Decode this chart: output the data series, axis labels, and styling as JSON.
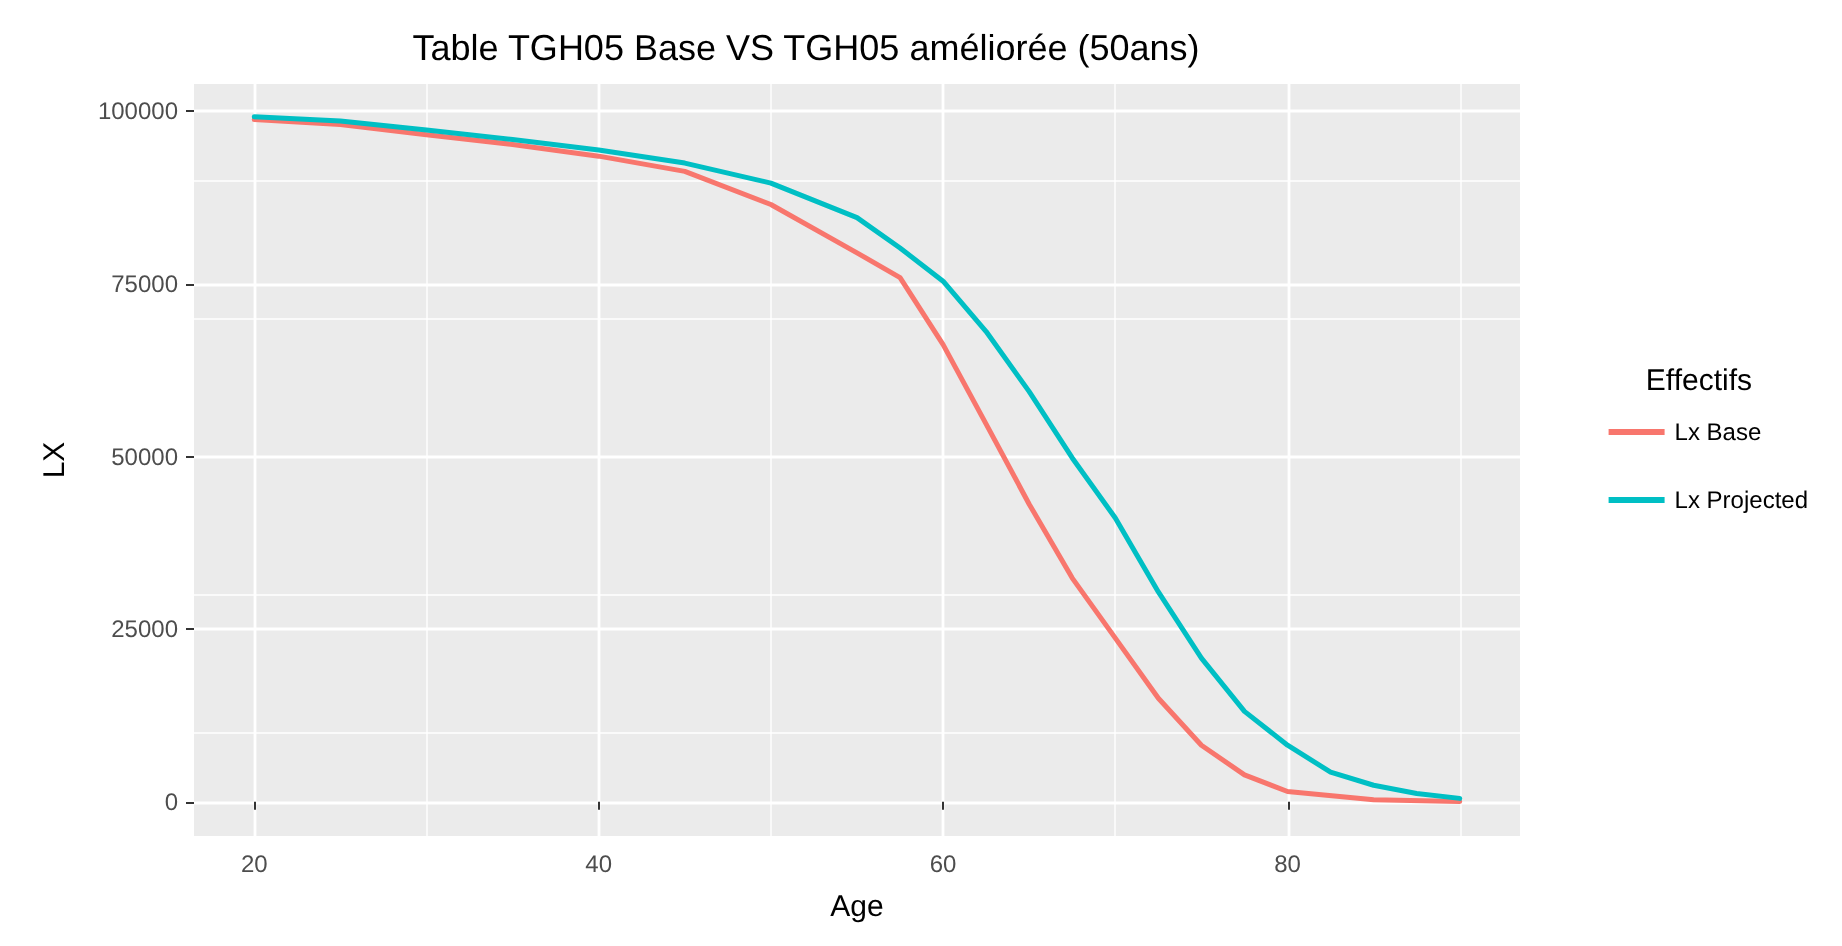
{
  "chart_data": {
    "type": "line",
    "title": "Table TGH05 Base VS TGH05 améliorée (50ans)",
    "xlabel": "Age",
    "ylabel": "LX",
    "legend_title": "Effectifs",
    "legend": "right",
    "grid": true,
    "marker": "none",
    "line_style": "solid",
    "xlim": [
      16.5,
      93.5
    ],
    "xticks": [
      20,
      40,
      60,
      80
    ],
    "ylim": [
      -4950,
      103950
    ],
    "yticks": [
      0,
      25000,
      50000,
      75000,
      100000
    ],
    "series": [
      {
        "name": "Lx Base",
        "color": "#f8766d",
        "x": [
          20,
          25,
          30,
          35,
          40,
          45,
          50,
          55,
          57.5,
          60,
          62.5,
          65,
          67.5,
          70,
          72.5,
          75,
          77.5,
          80,
          85,
          90
        ],
        "values": [
          98800,
          98100,
          96600,
          95200,
          93500,
          91300,
          86500,
          79500,
          75900,
          66200,
          54700,
          43100,
          32400,
          23700,
          15000,
          8200,
          3900,
          1500,
          300,
          50
        ]
      },
      {
        "name": "Lx Projected",
        "color": "#00bfc4",
        "x": [
          20,
          25,
          30,
          35,
          40,
          45,
          50,
          55,
          57.5,
          60,
          62.5,
          65,
          67.5,
          70,
          72.5,
          75,
          77.5,
          80,
          82.5,
          85,
          87.5,
          90
        ],
        "values": [
          99200,
          98600,
          97300,
          95900,
          94400,
          92500,
          89600,
          84600,
          80200,
          75400,
          68100,
          59400,
          49800,
          41100,
          30400,
          20800,
          13100,
          8200,
          4300,
          2400,
          1200,
          500
        ]
      }
    ]
  }
}
